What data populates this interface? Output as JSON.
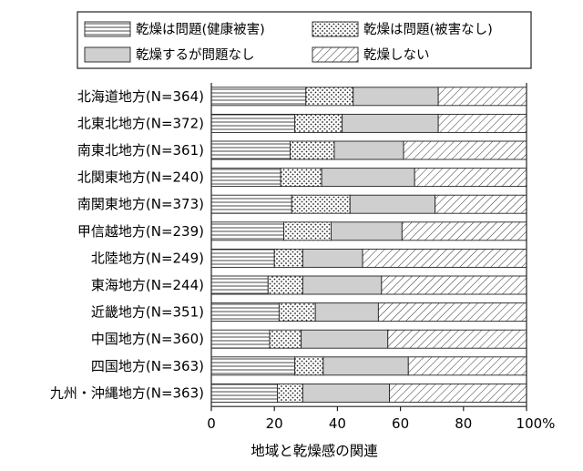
{
  "chart_data": {
    "type": "bar",
    "orientation": "horizontal",
    "stacked": true,
    "categories": [
      "北海道地方(N=364)",
      "北東北地方(N=372)",
      "南東北地方(N=361)",
      "北関東地方(N=240)",
      "南関東地方(N=373)",
      "甲信越地方(N=239)",
      "北陸地方(N=249)",
      "東海地方(N=244)",
      "近畿地方(N=351)",
      "中国地方(N=360)",
      "四国地方(N=363)",
      "九州・沖縄地方(N=363)"
    ],
    "series": [
      {
        "name": "乾燥は問題(健康被害)",
        "pattern": "horizontal-lines",
        "values": [
          30,
          26.5,
          25,
          22,
          25.5,
          23,
          20,
          18,
          21.5,
          18.5,
          26.5,
          21
        ]
      },
      {
        "name": "乾燥は問題(被害なし)",
        "pattern": "dots",
        "values": [
          15,
          15,
          14,
          13,
          18.5,
          15,
          9,
          11,
          11.5,
          10,
          9,
          8
        ]
      },
      {
        "name": "乾燥するが問題なし",
        "pattern": "solid-gray",
        "values": [
          27,
          30.5,
          22,
          29.5,
          27,
          22.5,
          19,
          25,
          20,
          27.5,
          27,
          27.5
        ]
      },
      {
        "name": "乾燥しない",
        "pattern": "diagonal-lines",
        "values": [
          28,
          28,
          39,
          35.5,
          29,
          39.5,
          52,
          46,
          47,
          44,
          37.5,
          43.5
        ]
      }
    ],
    "xlim": [
      0,
      100
    ],
    "xticks": [
      "0",
      "20",
      "40",
      "60",
      "80",
      "100%"
    ],
    "xlabel": "地域と乾燥感の関連",
    "legend": {
      "placement": "top",
      "columns": 2
    },
    "grid": false
  }
}
